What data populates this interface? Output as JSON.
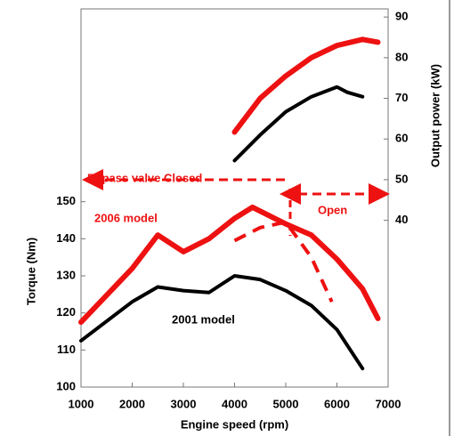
{
  "chart_data": {
    "type": "line",
    "x_label": "Engine speed (rpm)",
    "y_label": "Torque (Nm)",
    "y2_label": "Output power (kW)",
    "xlim": [
      1000,
      7000
    ],
    "xticks": [
      1000,
      2000,
      3000,
      4000,
      5000,
      6000,
      7000
    ],
    "ylim": [
      100,
      202
    ],
    "yticks": [
      100,
      110,
      120,
      130,
      140,
      150
    ],
    "y2lim": [
      -1,
      92
    ],
    "y2ticks": [
      40,
      50,
      60,
      70,
      80,
      90
    ],
    "annotations": [
      "Bypass valve Closed",
      "Open",
      "2006 model",
      "2001 model"
    ],
    "series": [
      {
        "color": "#ee1111",
        "x": [
          1000,
          2000,
          2500,
          3000,
          3500,
          4000,
          4350,
          5000,
          5500,
          6000,
          6500,
          6800
        ],
        "values": [
          117.5,
          132,
          141,
          136.5,
          140,
          145.5,
          148.5,
          144,
          141,
          134.5,
          126.5,
          118.5
        ]
      },
      {
        "color": "#ee1111",
        "dashed": true,
        "x": [
          4000,
          4500,
          5000,
          5500,
          5900
        ],
        "values": [
          139.5,
          143,
          144.5,
          135,
          123
        ]
      },
      {
        "color": "#000000",
        "x": [
          1000,
          2000,
          2500,
          3000,
          3500,
          4000,
          4500,
          5000,
          5500,
          6000,
          6500
        ],
        "values": [
          112.5,
          123,
          127,
          126,
          125.5,
          130,
          129,
          126,
          122,
          115.5,
          105
        ]
      },
      {
        "color": "#ee1111",
        "axis": "y2",
        "x": [
          4000,
          4500,
          5000,
          5500,
          6000,
          6500,
          6800
        ],
        "values": [
          61.7,
          70,
          75.5,
          80,
          83,
          84.5,
          83.8
        ]
      },
      {
        "color": "#000000",
        "axis": "y2",
        "x": [
          4000,
          4500,
          5000,
          5500,
          6000,
          6200,
          6500
        ],
        "values": [
          54.7,
          61,
          66.7,
          70.4,
          72.8,
          71.5,
          70.4
        ]
      }
    ]
  }
}
